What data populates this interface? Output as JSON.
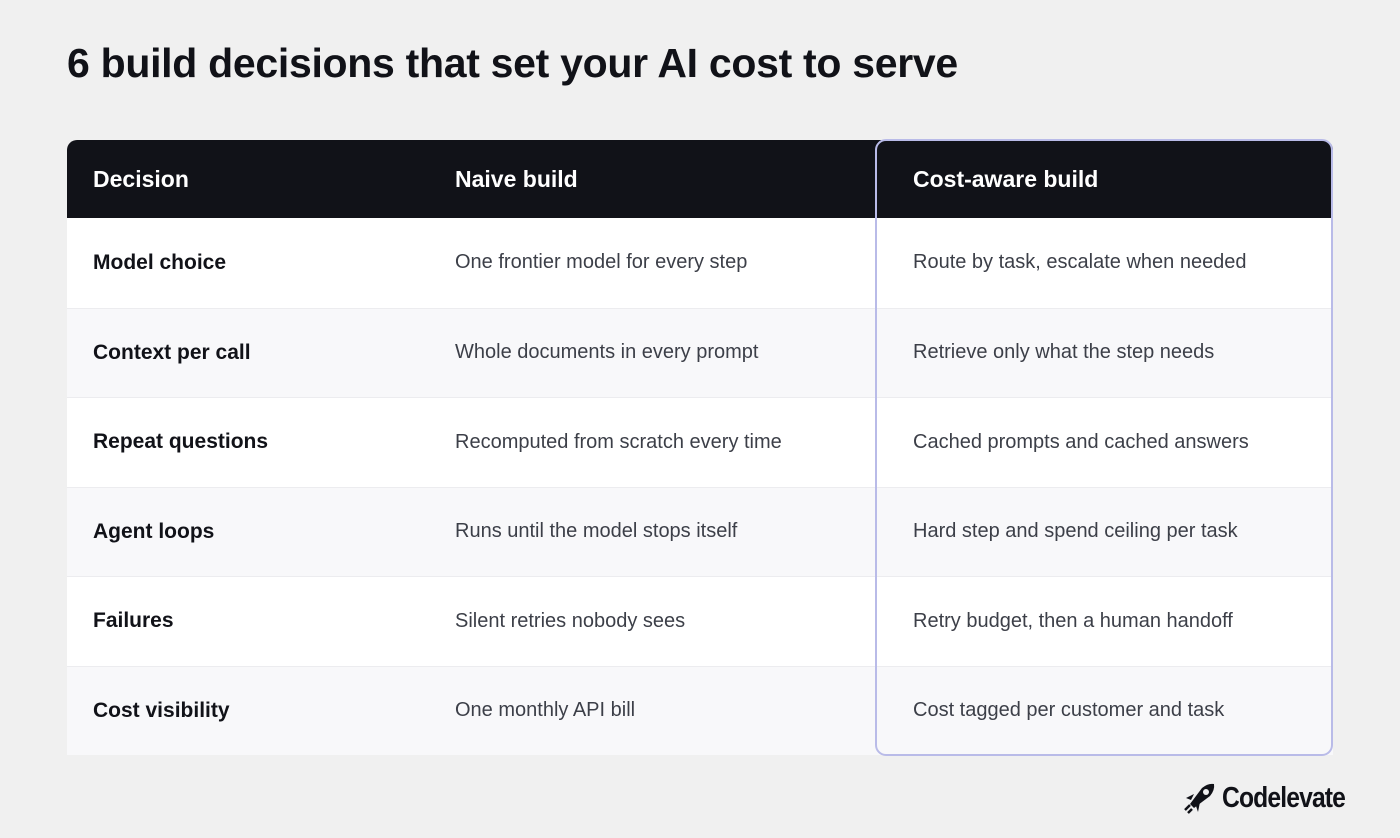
{
  "header": {
    "title": "6 build decisions that set your AI cost to serve"
  },
  "table": {
    "columns": [
      "Decision",
      "Naive build",
      "Cost-aware build"
    ],
    "rows": [
      [
        "Model choice",
        "One frontier model for every step",
        "Route by task, escalate when needed"
      ],
      [
        "Context per call",
        "Whole documents in every prompt",
        "Retrieve only what the step needs"
      ],
      [
        "Repeat questions",
        "Recomputed from scratch every time",
        "Cached prompts and cached answers"
      ],
      [
        "Agent loops",
        "Runs until the model stops itself",
        "Hard step and spend ceiling per task"
      ],
      [
        "Failures",
        "Silent retries nobody sees",
        "Retry budget, then a human handoff"
      ],
      [
        "Cost visibility",
        "One monthly API bill",
        "Cost tagged per customer and task"
      ]
    ]
  },
  "brand": {
    "name": "Codelevate"
  }
}
